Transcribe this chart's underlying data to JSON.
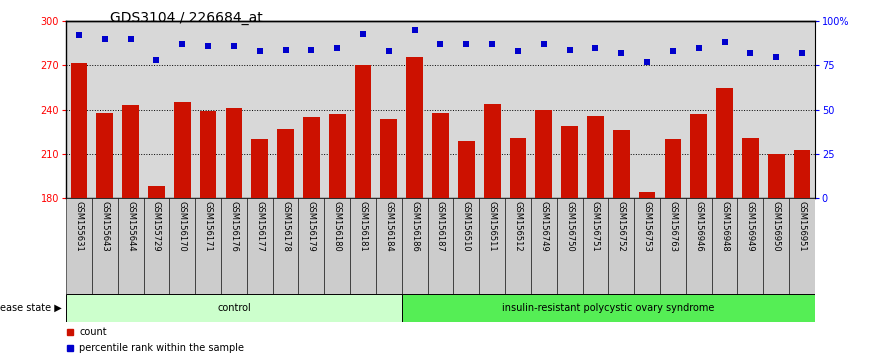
{
  "title": "GDS3104 / 226684_at",
  "categories": [
    "GSM155631",
    "GSM155643",
    "GSM155644",
    "GSM155729",
    "GSM156170",
    "GSM156171",
    "GSM156176",
    "GSM156177",
    "GSM156178",
    "GSM156179",
    "GSM156180",
    "GSM156181",
    "GSM156184",
    "GSM156186",
    "GSM156187",
    "GSM156510",
    "GSM156511",
    "GSM156512",
    "GSM156749",
    "GSM156750",
    "GSM156751",
    "GSM156752",
    "GSM156753",
    "GSM156763",
    "GSM156946",
    "GSM156948",
    "GSM156949",
    "GSM156950",
    "GSM156951"
  ],
  "bar_values": [
    272,
    238,
    243,
    188,
    245,
    239,
    241,
    220,
    227,
    235,
    237,
    270,
    234,
    276,
    238,
    219,
    244,
    221,
    240,
    229,
    236,
    226,
    184,
    220,
    237,
    255,
    221,
    210,
    213
  ],
  "percentile_values": [
    92,
    90,
    90,
    78,
    87,
    86,
    86,
    83,
    84,
    84,
    85,
    93,
    83,
    95,
    87,
    87,
    87,
    83,
    87,
    84,
    85,
    82,
    77,
    83,
    85,
    88,
    82,
    80,
    82
  ],
  "control_count": 13,
  "group_labels": [
    "control",
    "insulin-resistant polycystic ovary syndrome"
  ],
  "group_colors": [
    "#ccffcc",
    "#55ee55"
  ],
  "bar_color": "#cc1100",
  "dot_color": "#0000cc",
  "plot_bg_color": "#d8d8d8",
  "xtick_bg_color": "#cccccc",
  "ylim_left": [
    180,
    300
  ],
  "ylim_right": [
    0,
    100
  ],
  "yticks_left": [
    180,
    210,
    240,
    270,
    300
  ],
  "yticks_right": [
    0,
    25,
    50,
    75,
    100
  ],
  "ytick_right_labels": [
    "0",
    "25",
    "50",
    "75",
    "100%"
  ],
  "grid_values": [
    210,
    240,
    270
  ],
  "title_fontsize": 10,
  "tick_fontsize": 7,
  "xtick_fontsize": 6,
  "disease_state_label": "disease state",
  "legend_count_label": "count",
  "legend_pct_label": "percentile rank within the sample"
}
